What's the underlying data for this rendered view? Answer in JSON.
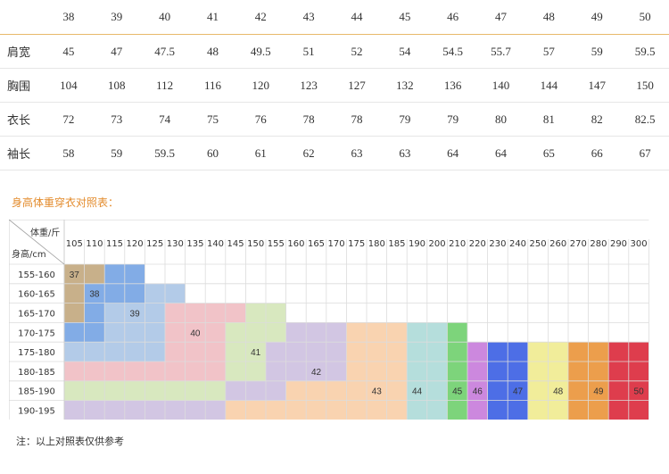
{
  "size_table": {
    "sizes": [
      "38",
      "39",
      "40",
      "41",
      "42",
      "43",
      "44",
      "45",
      "46",
      "47",
      "48",
      "49",
      "50"
    ],
    "rows": [
      {
        "label": "肩宽",
        "values": [
          "45",
          "47",
          "47.5",
          "48",
          "49.5",
          "51",
          "52",
          "54",
          "54.5",
          "55.7",
          "57",
          "59",
          "59.5"
        ]
      },
      {
        "label": "胸围",
        "values": [
          "104",
          "108",
          "112",
          "116",
          "120",
          "123",
          "127",
          "132",
          "136",
          "140",
          "144",
          "147",
          "150"
        ]
      },
      {
        "label": "衣长",
        "values": [
          "72",
          "73",
          "74",
          "75",
          "76",
          "78",
          "78",
          "79",
          "79",
          "80",
          "81",
          "82",
          "82.5"
        ]
      },
      {
        "label": "袖长",
        "values": [
          "58",
          "59",
          "59.5",
          "60",
          "61",
          "62",
          "63",
          "63",
          "64",
          "64",
          "65",
          "66",
          "67"
        ]
      }
    ]
  },
  "chart": {
    "title": "身高体重穿衣对照表：",
    "corner_weight_label": "体重/斤",
    "corner_height_label": "身高/cm",
    "weights": [
      "105",
      "110",
      "115",
      "120",
      "125",
      "130",
      "135",
      "140",
      "145",
      "150",
      "155",
      "160",
      "165",
      "170",
      "175",
      "180",
      "185",
      "190",
      "200",
      "210",
      "220",
      "230",
      "240",
      "250",
      "260",
      "270",
      "280",
      "290",
      "300"
    ],
    "heights": [
      "155-160",
      "160-165",
      "165-170",
      "170-175",
      "175-180",
      "180-185",
      "185-190",
      "190-195"
    ],
    "size_colors": {
      "37": "#c8b08a",
      "38": "#82ace6",
      "39": "#b3cbe8",
      "40": "#f1c3c8",
      "41": "#d8e8bf",
      "42": "#d2c6e3",
      "43": "#f9d3b0",
      "44": "#b5dedc",
      "45": "#7dd47b",
      "46": "#cc88de",
      "47": "#4d6ee6",
      "48": "#f1ed9a",
      "49": "#ec9e4c",
      "50": "#de3d4d"
    },
    "size_regions": [
      {
        "size": "37",
        "row": 0,
        "cells": [
          [
            0,
            2
          ],
          [
            0,
            2
          ],
          [
            0,
            1
          ],
          [
            0,
            1
          ]
        ]
      },
      {
        "size": "38",
        "rows": "custom"
      }
    ],
    "cell_sizes": [
      [
        "37",
        "37",
        "38",
        "38",
        "-",
        "-",
        "-",
        "-",
        "-",
        "-",
        "-",
        "-",
        "-",
        "-",
        "-",
        "-",
        "-",
        "-",
        "-",
        "-",
        "-",
        "-",
        "-",
        "-",
        "-",
        "-",
        "-",
        "-",
        "-"
      ],
      [
        "37",
        "38",
        "38",
        "38",
        "39",
        "39",
        "-",
        "-",
        "-",
        "-",
        "-",
        "-",
        "-",
        "-",
        "-",
        "-",
        "-",
        "-",
        "-",
        "-",
        "-",
        "-",
        "-",
        "-",
        "-",
        "-",
        "-",
        "-",
        "-"
      ],
      [
        "37",
        "38",
        "39",
        "39",
        "39",
        "40",
        "40",
        "40",
        "40",
        "41",
        "41",
        "-",
        "-",
        "-",
        "-",
        "-",
        "-",
        "-",
        "-",
        "-",
        "-",
        "-",
        "-",
        "-",
        "-",
        "-",
        "-",
        "-",
        "-"
      ],
      [
        "38",
        "38",
        "39",
        "39",
        "39",
        "40",
        "40",
        "40",
        "41",
        "41",
        "41",
        "42",
        "42",
        "42",
        "43",
        "43",
        "43",
        "44",
        "44",
        "45",
        "-",
        "-",
        "-",
        "-",
        "-",
        "-",
        "-",
        "-",
        "-"
      ],
      [
        "39",
        "39",
        "39",
        "39",
        "39",
        "40",
        "40",
        "40",
        "41",
        "41",
        "42",
        "42",
        "42",
        "42",
        "43",
        "43",
        "43",
        "44",
        "44",
        "45",
        "46",
        "47",
        "47",
        "48",
        "48",
        "49",
        "49",
        "50",
        "50"
      ],
      [
        "40",
        "40",
        "40",
        "40",
        "40",
        "40",
        "40",
        "40",
        "41",
        "41",
        "42",
        "42",
        "42",
        "42",
        "43",
        "43",
        "43",
        "44",
        "44",
        "45",
        "46",
        "47",
        "47",
        "48",
        "48",
        "49",
        "49",
        "50",
        "50"
      ],
      [
        "41",
        "41",
        "41",
        "41",
        "41",
        "41",
        "41",
        "41",
        "42",
        "42",
        "42",
        "43",
        "43",
        "43",
        "43",
        "43",
        "43",
        "44",
        "44",
        "45",
        "46",
        "47",
        "47",
        "48",
        "48",
        "49",
        "49",
        "50",
        "50"
      ],
      [
        "42",
        "42",
        "42",
        "42",
        "42",
        "42",
        "42",
        "42",
        "43",
        "43",
        "43",
        "43",
        "43",
        "43",
        "43",
        "43",
        "43",
        "44",
        "44",
        "45",
        "46",
        "47",
        "47",
        "48",
        "48",
        "49",
        "49",
        "50",
        "50"
      ]
    ],
    "labels": [
      {
        "text": "37",
        "row": 0,
        "col": 0
      },
      {
        "text": "38",
        "row": 1,
        "col": 1
      },
      {
        "text": "39",
        "row": 2,
        "col": 3
      },
      {
        "text": "40",
        "row": 3,
        "col": 6
      },
      {
        "text": "41",
        "row": 4,
        "col": 9
      },
      {
        "text": "42",
        "row": 5,
        "col": 12
      },
      {
        "text": "43",
        "row": 6,
        "col": 15
      },
      {
        "text": "44",
        "row": 6,
        "col": 17
      },
      {
        "text": "45",
        "row": 6,
        "col": 19
      },
      {
        "text": "46",
        "row": 6,
        "col": 20
      },
      {
        "text": "47",
        "row": 6,
        "col": 22
      },
      {
        "text": "48",
        "row": 6,
        "col": 24
      },
      {
        "text": "49",
        "row": 6,
        "col": 26
      },
      {
        "text": "50",
        "row": 6,
        "col": 28
      }
    ]
  },
  "note": "注：以上对照表仅供参考"
}
